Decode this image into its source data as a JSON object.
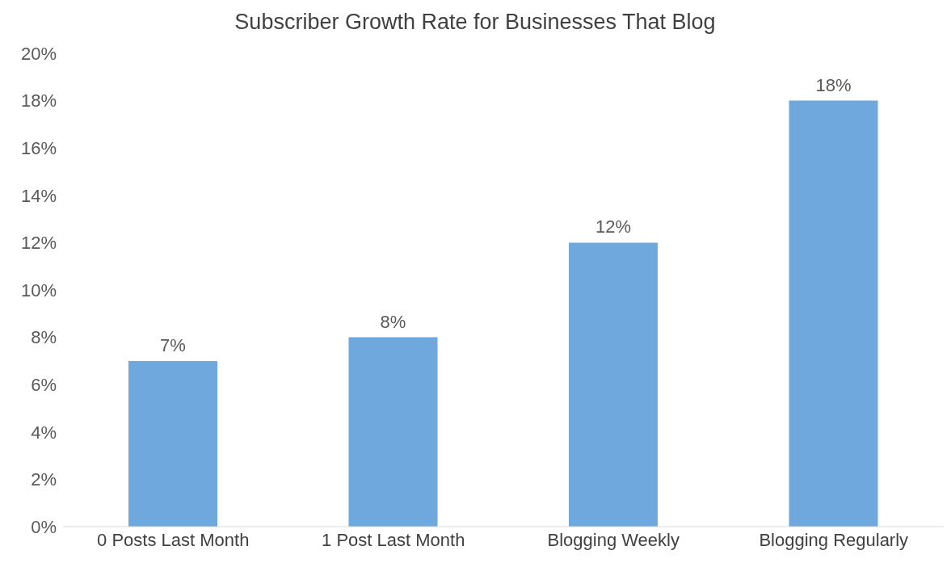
{
  "chart_data": {
    "type": "bar",
    "title": "Subscriber Growth Rate for Businesses That Blog",
    "categories": [
      "0 Posts Last Month",
      "1 Post Last Month",
      "Blogging Weekly",
      "Blogging Regularly"
    ],
    "values": [
      7,
      8,
      12,
      18
    ],
    "value_labels": [
      "7%",
      "8%",
      "12%",
      "18%"
    ],
    "color": "#6fa8dc",
    "ylim": [
      0,
      20
    ],
    "yticks": [
      {
        "value": 0,
        "label": "0%"
      },
      {
        "value": 2,
        "label": "2%"
      },
      {
        "value": 4,
        "label": "4%"
      },
      {
        "value": 6,
        "label": "6%"
      },
      {
        "value": 8,
        "label": "8%"
      },
      {
        "value": 10,
        "label": "10%"
      },
      {
        "value": 12,
        "label": "12%"
      },
      {
        "value": 14,
        "label": "14%"
      },
      {
        "value": 16,
        "label": "16%"
      },
      {
        "value": 18,
        "label": "18%"
      },
      {
        "value": 20,
        "label": "20%"
      }
    ],
    "grid": false,
    "legend": false
  }
}
